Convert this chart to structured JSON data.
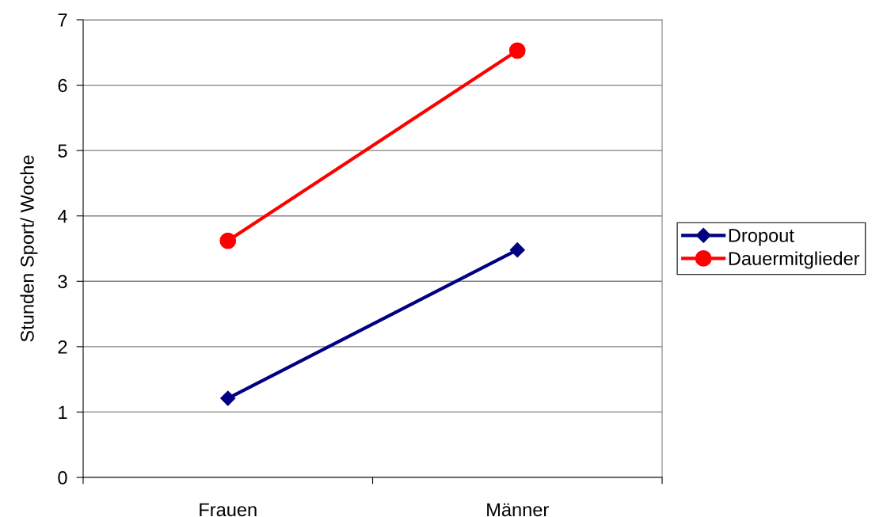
{
  "chart_data": {
    "type": "line",
    "ylabel": "Stunden Sport/ Woche",
    "categories": [
      "Frauen",
      "Männer"
    ],
    "series": [
      {
        "name": "Dropout",
        "color": "#000080",
        "marker": "diamond",
        "values": [
          1.21,
          3.48
        ]
      },
      {
        "name": "Dauermitglieder",
        "color": "#ff0000",
        "marker": "circle",
        "values": [
          3.62,
          6.53
        ]
      }
    ],
    "ylim": [
      0,
      7
    ],
    "yticks": [
      0,
      1,
      2,
      3,
      4,
      5,
      6,
      7
    ],
    "grid": "y",
    "legend": "right",
    "line_style": "solid"
  }
}
